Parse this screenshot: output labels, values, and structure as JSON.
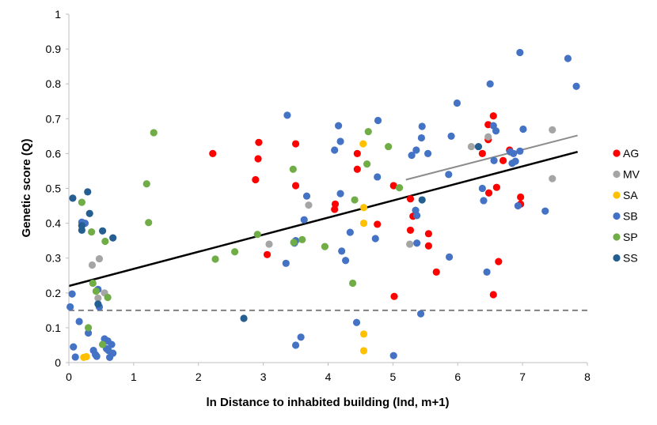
{
  "chart_data": {
    "type": "scatter",
    "xlabel": "ln Distance to inhabited building (lnd, m+1)",
    "ylabel": "Genetic score (Q)",
    "xlim": [
      0,
      8
    ],
    "ylim": [
      0,
      1
    ],
    "x_ticks": [
      "0",
      "1",
      "2",
      "3",
      "4",
      "5",
      "6",
      "7",
      "8"
    ],
    "y_ticks": [
      "0",
      "0.1",
      "0.2",
      "0.3",
      "0.4",
      "0.5",
      "0.6",
      "0.7",
      "0.8",
      "0.9",
      "1"
    ],
    "legend_position": "right",
    "series": [
      {
        "name": "AG",
        "color": "#ff0000",
        "points": [
          [
            2.22,
            0.6
          ],
          [
            2.88,
            0.525
          ],
          [
            2.92,
            0.585
          ],
          [
            2.93,
            0.632
          ],
          [
            3.06,
            0.31
          ],
          [
            3.5,
            0.628
          ],
          [
            3.5,
            0.508
          ],
          [
            4.1,
            0.44
          ],
          [
            4.11,
            0.455
          ],
          [
            4.45,
            0.6
          ],
          [
            4.45,
            0.555
          ],
          [
            4.76,
            0.397
          ],
          [
            5.01,
            0.508
          ],
          [
            5.02,
            0.19
          ],
          [
            5.27,
            0.47
          ],
          [
            5.27,
            0.38
          ],
          [
            5.31,
            0.42
          ],
          [
            5.55,
            0.37
          ],
          [
            5.55,
            0.335
          ],
          [
            5.67,
            0.26
          ],
          [
            6.38,
            0.6
          ],
          [
            6.47,
            0.683
          ],
          [
            6.47,
            0.64
          ],
          [
            6.48,
            0.487
          ],
          [
            6.55,
            0.708
          ],
          [
            6.55,
            0.195
          ],
          [
            6.6,
            0.503
          ],
          [
            6.63,
            0.29
          ],
          [
            6.7,
            0.58
          ],
          [
            6.8,
            0.61
          ],
          [
            6.97,
            0.475
          ],
          [
            6.97,
            0.455
          ]
        ]
      },
      {
        "name": "MV",
        "color": "#a5a5a5",
        "points": [
          [
            0.36,
            0.28
          ],
          [
            0.45,
            0.185
          ],
          [
            0.47,
            0.298
          ],
          [
            0.55,
            0.2
          ],
          [
            3.09,
            0.34
          ],
          [
            3.7,
            0.452
          ],
          [
            5.26,
            0.34
          ],
          [
            6.21,
            0.62
          ],
          [
            6.47,
            0.648
          ],
          [
            7.46,
            0.668
          ],
          [
            7.46,
            0.528
          ]
        ]
      },
      {
        "name": "SA",
        "color": "#ffc000",
        "points": [
          [
            0.23,
            0.015
          ],
          [
            0.27,
            0.017
          ],
          [
            4.54,
            0.628
          ],
          [
            4.55,
            0.445
          ],
          [
            4.55,
            0.4
          ],
          [
            4.55,
            0.082
          ],
          [
            4.55,
            0.034
          ]
        ]
      },
      {
        "name": "SB",
        "color": "#4472c4",
        "points": [
          [
            0.02,
            0.16
          ],
          [
            0.05,
            0.197
          ],
          [
            0.07,
            0.045
          ],
          [
            0.1,
            0.016
          ],
          [
            0.16,
            0.118
          ],
          [
            0.2,
            0.403
          ],
          [
            0.25,
            0.4
          ],
          [
            0.3,
            0.085
          ],
          [
            0.38,
            0.035
          ],
          [
            0.41,
            0.023
          ],
          [
            0.43,
            0.018
          ],
          [
            0.45,
            0.21
          ],
          [
            0.47,
            0.16
          ],
          [
            0.55,
            0.068
          ],
          [
            0.58,
            0.04
          ],
          [
            0.6,
            0.062
          ],
          [
            0.61,
            0.035
          ],
          [
            0.63,
            0.015
          ],
          [
            0.66,
            0.052
          ],
          [
            0.68,
            0.027
          ],
          [
            3.35,
            0.285
          ],
          [
            3.37,
            0.71
          ],
          [
            3.48,
            0.343
          ],
          [
            3.5,
            0.35
          ],
          [
            3.5,
            0.05
          ],
          [
            3.58,
            0.073
          ],
          [
            3.63,
            0.41
          ],
          [
            3.67,
            0.478
          ],
          [
            4.1,
            0.61
          ],
          [
            4.16,
            0.68
          ],
          [
            4.19,
            0.485
          ],
          [
            4.19,
            0.635
          ],
          [
            4.21,
            0.32
          ],
          [
            4.27,
            0.293
          ],
          [
            4.34,
            0.374
          ],
          [
            4.44,
            0.115
          ],
          [
            4.73,
            0.356
          ],
          [
            4.76,
            0.533
          ],
          [
            4.77,
            0.695
          ],
          [
            5.01,
            0.02
          ],
          [
            5.29,
            0.595
          ],
          [
            5.35,
            0.437
          ],
          [
            5.36,
            0.61
          ],
          [
            5.37,
            0.422
          ],
          [
            5.37,
            0.343
          ],
          [
            5.43,
            0.14
          ],
          [
            5.44,
            0.645
          ],
          [
            5.45,
            0.678
          ],
          [
            5.54,
            0.6
          ],
          [
            5.86,
            0.54
          ],
          [
            5.87,
            0.303
          ],
          [
            5.9,
            0.65
          ],
          [
            5.99,
            0.745
          ],
          [
            6.38,
            0.5
          ],
          [
            6.4,
            0.465
          ],
          [
            6.45,
            0.26
          ],
          [
            6.5,
            0.8
          ],
          [
            6.55,
            0.68
          ],
          [
            6.56,
            0.58
          ],
          [
            6.59,
            0.665
          ],
          [
            6.81,
            0.605
          ],
          [
            6.84,
            0.572
          ],
          [
            6.86,
            0.6
          ],
          [
            6.89,
            0.578
          ],
          [
            6.93,
            0.45
          ],
          [
            6.96,
            0.607
          ],
          [
            6.96,
            0.89
          ],
          [
            7.01,
            0.67
          ],
          [
            7.35,
            0.435
          ],
          [
            7.7,
            0.873
          ],
          [
            7.83,
            0.793
          ]
        ]
      },
      {
        "name": "SP",
        "color": "#70ad47",
        "points": [
          [
            0.2,
            0.46
          ],
          [
            0.3,
            0.1
          ],
          [
            0.35,
            0.375
          ],
          [
            0.37,
            0.228
          ],
          [
            0.42,
            0.205
          ],
          [
            0.52,
            0.052
          ],
          [
            0.56,
            0.348
          ],
          [
            0.6,
            0.187
          ],
          [
            1.2,
            0.513
          ],
          [
            1.23,
            0.402
          ],
          [
            1.31,
            0.66
          ],
          [
            2.26,
            0.297
          ],
          [
            2.56,
            0.318
          ],
          [
            2.91,
            0.368
          ],
          [
            3.46,
            0.555
          ],
          [
            3.47,
            0.345
          ],
          [
            3.6,
            0.353
          ],
          [
            3.95,
            0.333
          ],
          [
            4.38,
            0.228
          ],
          [
            4.41,
            0.467
          ],
          [
            4.6,
            0.57
          ],
          [
            4.62,
            0.663
          ],
          [
            4.93,
            0.62
          ],
          [
            5.1,
            0.502
          ]
        ]
      },
      {
        "name": "SS",
        "color": "#255e91",
        "points": [
          [
            0.06,
            0.472
          ],
          [
            0.2,
            0.38
          ],
          [
            0.2,
            0.393
          ],
          [
            0.29,
            0.49
          ],
          [
            0.32,
            0.428
          ],
          [
            0.45,
            0.168
          ],
          [
            0.52,
            0.378
          ],
          [
            0.68,
            0.358
          ],
          [
            2.7,
            0.127
          ],
          [
            5.45,
            0.467
          ],
          [
            6.32,
            0.62
          ]
        ]
      }
    ],
    "trendlines": [
      {
        "color": "#000000",
        "x": [
          0,
          7.85
        ],
        "y": [
          0.22,
          0.605
        ]
      },
      {
        "color": "#8c8c8c",
        "x": [
          5.2,
          7.85
        ],
        "y": [
          0.525,
          0.652
        ]
      }
    ],
    "reference_line": {
      "y": 0.15,
      "color": "#808080",
      "style": "dashed"
    }
  }
}
